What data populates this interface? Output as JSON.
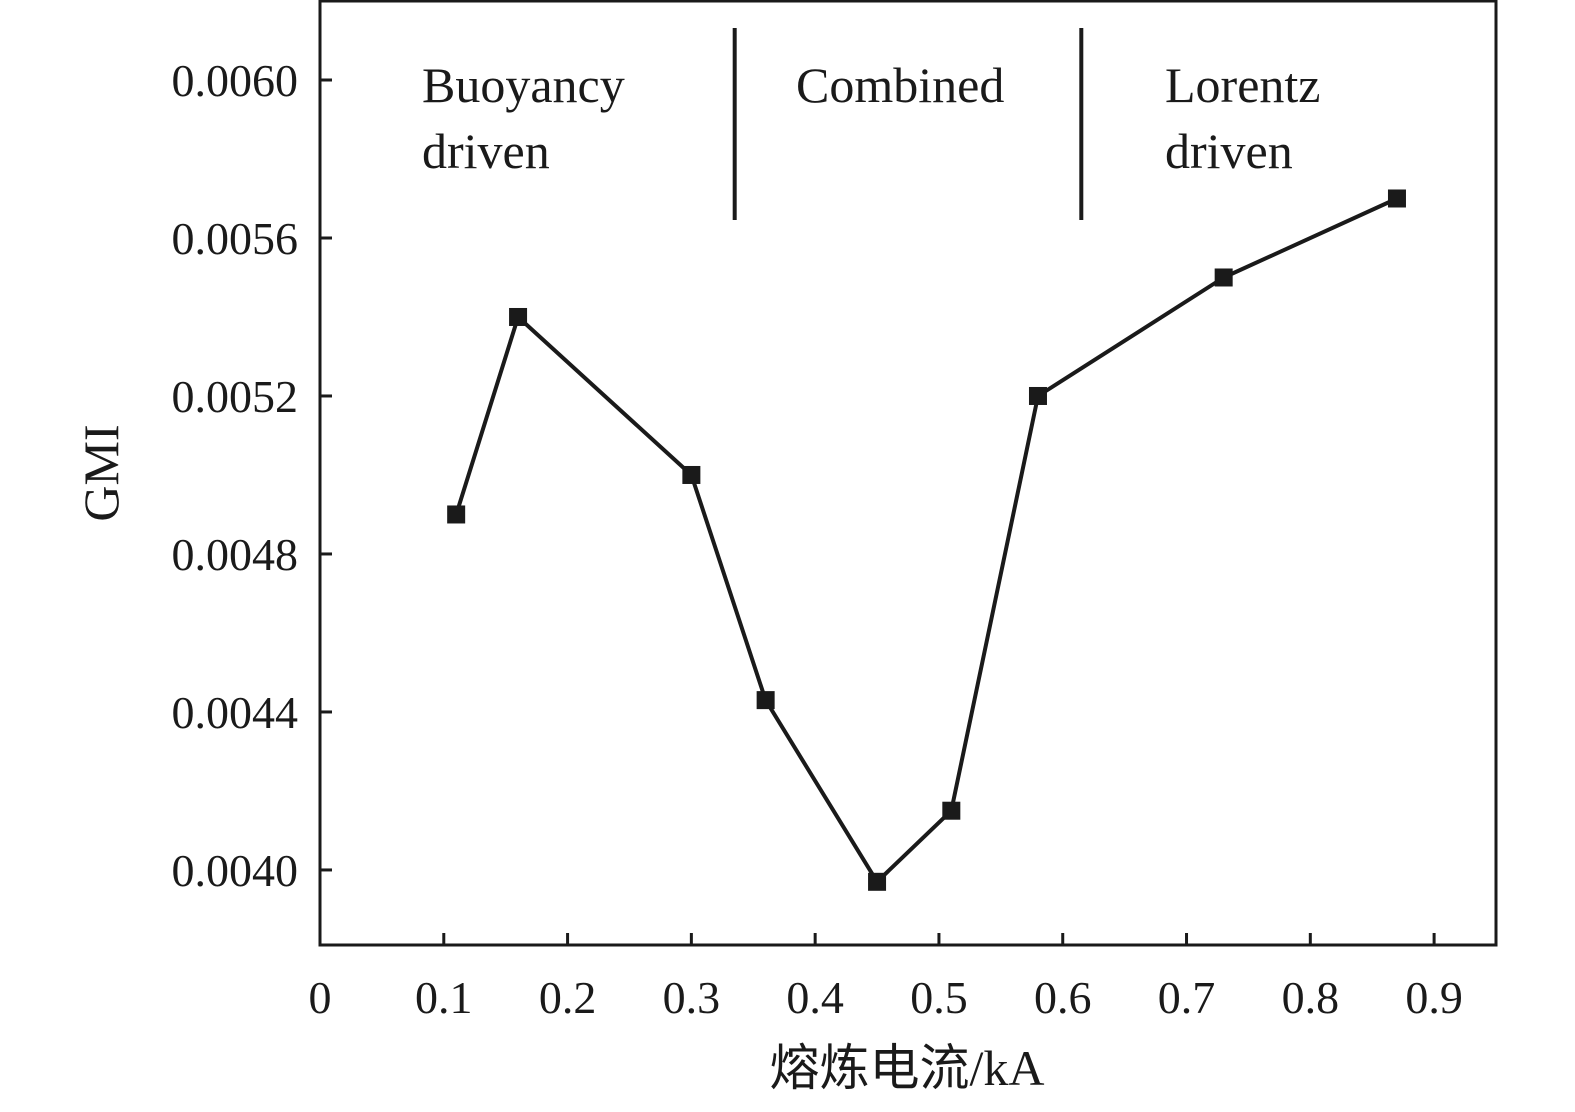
{
  "chart_data": {
    "type": "line",
    "title": "",
    "xlabel": "熔炼电流/kA",
    "ylabel": "GMI",
    "xlim": [
      0,
      0.95
    ],
    "ylim": [
      0.00381,
      0.0062
    ],
    "x_ticks": [
      0,
      0.1,
      0.2,
      0.3,
      0.4,
      0.5,
      0.6,
      0.7,
      0.8,
      0.9
    ],
    "x_tick_labels": [
      "0",
      "0.1",
      "0.2",
      "0.3",
      "0.4",
      "0.5",
      "0.6",
      "0.7",
      "0.8",
      "0.9"
    ],
    "y_ticks": [
      0.004,
      0.0044,
      0.0048,
      0.0052,
      0.0056,
      0.006
    ],
    "y_tick_labels": [
      "0.0040",
      "0.0044",
      "0.0048",
      "0.0052",
      "0.0056",
      "0.0060"
    ],
    "grid": false,
    "marker": "square",
    "color": "#1a1a1a",
    "series": [
      {
        "x": [
          0.11,
          0.16,
          0.3,
          0.36,
          0.45,
          0.51,
          0.58,
          0.73,
          0.87
        ],
        "y": [
          0.0049,
          0.0054,
          0.005,
          0.00443,
          0.00397,
          0.00415,
          0.0052,
          0.0055,
          0.0057
        ]
      }
    ],
    "regions": [
      {
        "lines": [
          "Buoyancy",
          "driven"
        ]
      },
      {
        "lines": [
          "Combined"
        ]
      },
      {
        "lines": [
          "Lorentz",
          "driven"
        ]
      }
    ],
    "region_boundaries": [
      0.335,
      0.615
    ]
  }
}
